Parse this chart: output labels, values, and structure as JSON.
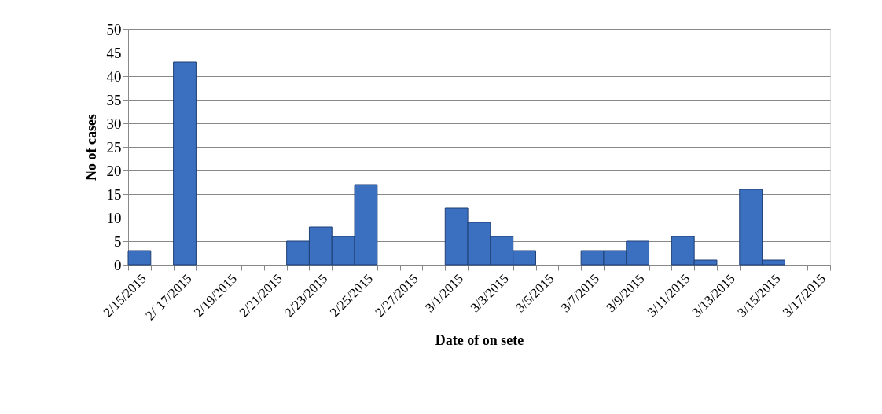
{
  "chart_data": {
    "type": "bar",
    "xlabel": "Date of on sete",
    "ylabel": "No of cases",
    "categories": [
      "2/15/2015",
      null,
      "2/`17/2015",
      null,
      "2/19/2015",
      null,
      "2/21/2015",
      null,
      "2/23/2015",
      null,
      "2/25/2015",
      null,
      "2/27/2015",
      null,
      "3/1/2015",
      null,
      "3/3/2015",
      null,
      "3/5/2015",
      null,
      "3/7/2015",
      null,
      "3/9/2015",
      null,
      "3/11/2015",
      null,
      "3/13/2015",
      null,
      "3/15/2015",
      null,
      "3/17/2015"
    ],
    "values": [
      3,
      0,
      43,
      0,
      0,
      0,
      0,
      5,
      8,
      6,
      17,
      0,
      0,
      0,
      12,
      9,
      6,
      3,
      0,
      0,
      3,
      3,
      5,
      0,
      6,
      1,
      0,
      16,
      1,
      0,
      0
    ],
    "color": "#3b6fc0",
    "ylim": [
      0,
      50
    ],
    "yticks": [
      0,
      5,
      10,
      15,
      20,
      25,
      30,
      35,
      40,
      45,
      50
    ],
    "grid": "y"
  }
}
